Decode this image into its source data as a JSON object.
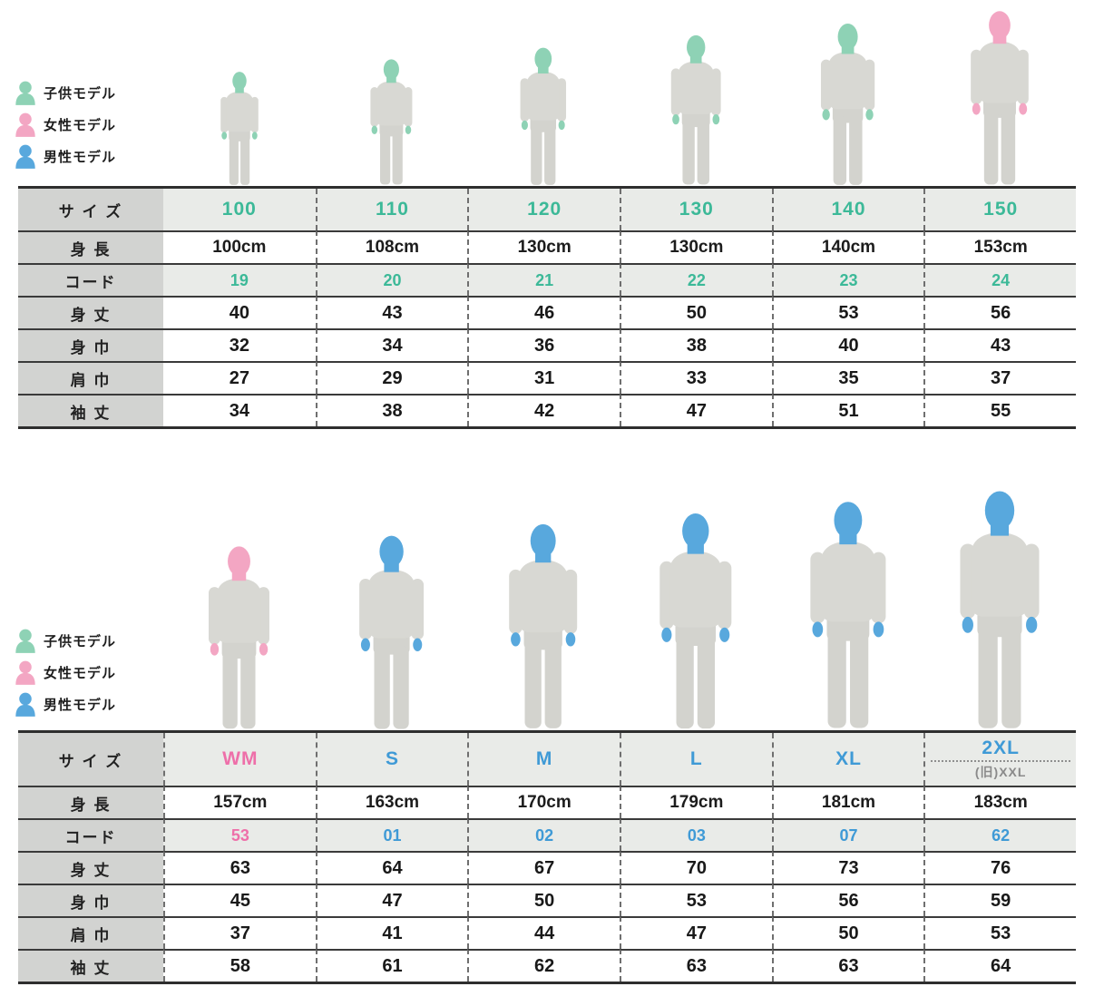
{
  "colors": {
    "kid": {
      "head": "#8ed2b5",
      "text": "#3cb998"
    },
    "female": {
      "head": "#f3a6c3",
      "text": "#ee6fa9"
    },
    "male": {
      "head": "#58a8dd",
      "text": "#3f9ad6"
    },
    "label_bg": "#d2d3d1",
    "shaded_bg": "#e9ebe8",
    "sweatshirt": "#d8d8d3",
    "pants": "#d3d3ce"
  },
  "legend": {
    "items": [
      {
        "key": "kid",
        "label": "子供モデル"
      },
      {
        "key": "female",
        "label": "女性モデル"
      },
      {
        "key": "male",
        "label": "男性モデル"
      }
    ]
  },
  "tables": [
    {
      "key": "kids",
      "size_row_label": "サ イ ズ",
      "sizes": [
        {
          "label": "100",
          "model": "kid",
          "accent": "kid"
        },
        {
          "label": "110",
          "model": "kid",
          "accent": "kid"
        },
        {
          "label": "120",
          "model": "kid",
          "accent": "kid"
        },
        {
          "label": "130",
          "model": "kid",
          "accent": "kid"
        },
        {
          "label": "140",
          "model": "kid",
          "accent": "kid"
        },
        {
          "label": "150",
          "model": "female",
          "accent": "kid"
        }
      ],
      "rows": [
        {
          "key": "height",
          "label": "身 長",
          "shaded": false,
          "accent": false,
          "values": [
            "100cm",
            "108cm",
            "130cm",
            "130cm",
            "140cm",
            "153cm"
          ]
        },
        {
          "key": "code",
          "label": "コード",
          "shaded": true,
          "accent": true,
          "values": [
            "19",
            "20",
            "21",
            "22",
            "23",
            "24"
          ]
        },
        {
          "key": "body-length",
          "label": "身 丈",
          "shaded": false,
          "accent": false,
          "values": [
            "40",
            "43",
            "46",
            "50",
            "53",
            "56"
          ]
        },
        {
          "key": "body-width",
          "label": "身 巾",
          "shaded": false,
          "accent": false,
          "values": [
            "32",
            "34",
            "36",
            "38",
            "40",
            "43"
          ]
        },
        {
          "key": "shoulder-width",
          "label": "肩 巾",
          "shaded": false,
          "accent": false,
          "values": [
            "27",
            "29",
            "31",
            "33",
            "35",
            "37"
          ]
        },
        {
          "key": "sleeve-length",
          "label": "袖 丈",
          "shaded": false,
          "accent": false,
          "values": [
            "34",
            "38",
            "42",
            "47",
            "51",
            "55"
          ]
        }
      ]
    },
    {
      "key": "adults",
      "size_row_label": "サ イ ズ",
      "sizes": [
        {
          "label": "WM",
          "model": "female",
          "accent": "female"
        },
        {
          "label": "S",
          "model": "male",
          "accent": "male"
        },
        {
          "label": "M",
          "model": "male",
          "accent": "male"
        },
        {
          "label": "L",
          "model": "male",
          "accent": "male"
        },
        {
          "label": "XL",
          "model": "male",
          "accent": "male"
        },
        {
          "label": "2XL",
          "sub": "(旧)XXL",
          "model": "male",
          "accent": "male"
        }
      ],
      "rows": [
        {
          "key": "height",
          "label": "身 長",
          "shaded": false,
          "accent": false,
          "values": [
            "157cm",
            "163cm",
            "170cm",
            "179cm",
            "181cm",
            "183cm"
          ]
        },
        {
          "key": "code",
          "label": "コード",
          "shaded": true,
          "accent": true,
          "values": [
            "53",
            "01",
            "02",
            "03",
            "07",
            "62"
          ]
        },
        {
          "key": "body-length",
          "label": "身 丈",
          "shaded": false,
          "accent": false,
          "values": [
            "63",
            "64",
            "67",
            "70",
            "73",
            "76"
          ]
        },
        {
          "key": "body-width",
          "label": "身 巾",
          "shaded": false,
          "accent": false,
          "values": [
            "45",
            "47",
            "50",
            "53",
            "56",
            "59"
          ]
        },
        {
          "key": "shoulder-width",
          "label": "肩 巾",
          "shaded": false,
          "accent": false,
          "values": [
            "37",
            "41",
            "44",
            "47",
            "50",
            "53"
          ]
        },
        {
          "key": "sleeve-length",
          "label": "袖 丈",
          "shaded": false,
          "accent": false,
          "values": [
            "58",
            "61",
            "62",
            "63",
            "63",
            "64"
          ]
        }
      ]
    }
  ]
}
